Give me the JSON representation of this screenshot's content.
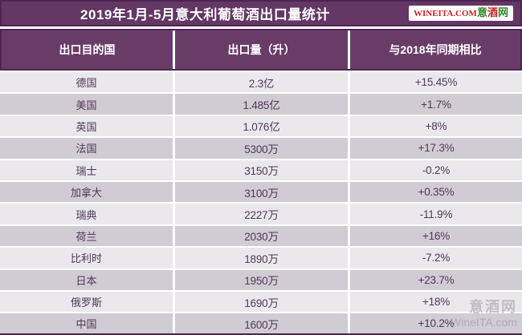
{
  "title": {
    "text": "2019年1月-5月意大利葡萄酒出口量统计",
    "badge": {
      "latin": "WINEITA.COM",
      "cn1": "意",
      "cn2": "酒",
      "cn3": "网"
    }
  },
  "table": {
    "headers": [
      "出口目的国",
      "出口量（升）",
      "与2018年同期相比"
    ],
    "rows": [
      {
        "country": "德国",
        "volume": "2.3亿",
        "change": "+15.45%"
      },
      {
        "country": "美国",
        "volume": "1.485亿",
        "change": "+1.7%"
      },
      {
        "country": "英国",
        "volume": "1.076亿",
        "change": "+8%"
      },
      {
        "country": "法国",
        "volume": "5300万",
        "change": "+17.3%"
      },
      {
        "country": "瑞士",
        "volume": "3150万",
        "change": "-0.2%"
      },
      {
        "country": "加拿大",
        "volume": "3100万",
        "change": "+0.35%"
      },
      {
        "country": "瑞典",
        "volume": "2227万",
        "change": "-11.9%"
      },
      {
        "country": "荷兰",
        "volume": "2030万",
        "change": "+16%"
      },
      {
        "country": "比利时",
        "volume": "1890万",
        "change": "-7.2%"
      },
      {
        "country": "日本",
        "volume": "1950万",
        "change": "+23.7%"
      },
      {
        "country": "俄罗斯",
        "volume": "1690万",
        "change": "+18%"
      },
      {
        "country": "中国",
        "volume": "1600万",
        "change": "+10.2%"
      }
    ]
  },
  "watermark": {
    "line1": "意酒网",
    "line2": "WineITA.com"
  },
  "colors": {
    "purple_fill": "#693c68",
    "purple_border": "#4c2450",
    "row_light": "#eae8ec",
    "row_dark": "#d1cbd3",
    "cell_text": "#4f3a58",
    "badge_red": "#cb2128",
    "badge_green": "#35882f",
    "watermark_gray": "#a59faa"
  },
  "chart_data": {
    "type": "table",
    "title": "2019年1月-5月意大利葡萄酒出口量统计",
    "columns": [
      "出口目的国",
      "出口量（升）",
      "与2018年同期相比"
    ],
    "rows": [
      [
        "德国",
        "2.3亿",
        "+15.45%"
      ],
      [
        "美国",
        "1.485亿",
        "+1.7%"
      ],
      [
        "英国",
        "1.076亿",
        "+8%"
      ],
      [
        "法国",
        "5300万",
        "+17.3%"
      ],
      [
        "瑞士",
        "3150万",
        "-0.2%"
      ],
      [
        "加拿大",
        "3100万",
        "+0.35%"
      ],
      [
        "瑞典",
        "2227万",
        "-11.9%"
      ],
      [
        "荷兰",
        "2030万",
        "+16%"
      ],
      [
        "比利时",
        "1890万",
        "-7.2%"
      ],
      [
        "日本",
        "1950万",
        "+23.7%"
      ],
      [
        "俄罗斯",
        "1690万",
        "+18%"
      ],
      [
        "中国",
        "1600万",
        "+10.2%"
      ]
    ]
  }
}
